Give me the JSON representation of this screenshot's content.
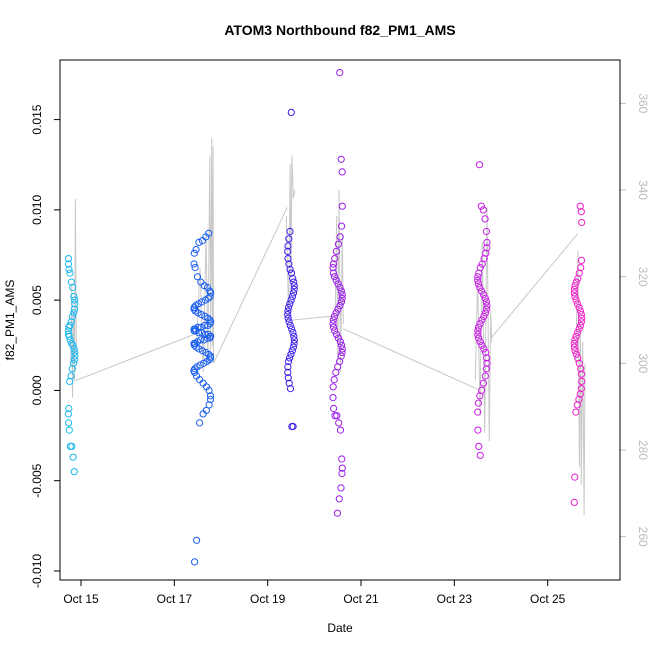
{
  "chart_data": {
    "type": "scatter",
    "title": "ATOM3 Northbound f82_PM1_AMS",
    "xlabel": "Date",
    "ylabel": "f82_PM1_AMS",
    "y2label": "",
    "xlim": [
      14.55,
      26.55
    ],
    "ylim": [
      -0.0105,
      0.0183
    ],
    "y2lim": [
      250,
      370
    ],
    "x_ticks": [
      15,
      17,
      19,
      21,
      23,
      25
    ],
    "x_tick_labels": [
      "Oct 15",
      "Oct 17",
      "Oct 19",
      "Oct 21",
      "Oct 23",
      "Oct 25"
    ],
    "y_ticks": [
      -0.01,
      -0.005,
      0.0,
      0.005,
      0.01,
      0.015
    ],
    "y_tick_labels": [
      "-0.010",
      "-0.005",
      "0.000",
      "0.005",
      "0.010",
      "0.015"
    ],
    "y2_ticks": [
      260,
      280,
      300,
      320,
      340,
      360
    ],
    "y2_tick_labels": [
      "260",
      "280",
      "300",
      "320",
      "340",
      "360"
    ],
    "grid": false,
    "colors": {
      "axis": "#000000",
      "right_axis": "#bbbbbb",
      "altitude_line": "#c8c8c8"
    },
    "series": [
      {
        "name": "f82_PM1_AMS",
        "marker": "open-circle",
        "clusters": [
          {
            "x_center": 14.8,
            "x_spread": 0.07,
            "color": "#1ab8f0",
            "y": [
              0.0073,
              0.007,
              0.0067,
              0.0065,
              0.006,
              0.0057,
              0.0052,
              0.005,
              0.0048,
              0.0045,
              0.0043,
              0.0041,
              0.0038,
              0.0036,
              0.0035,
              0.0033,
              0.0031,
              0.003,
              0.0028,
              0.0026,
              0.0025,
              0.0023,
              0.0021,
              0.0019,
              0.0017,
              0.0015,
              0.0012,
              0.0008,
              0.0005,
              -0.001,
              -0.0013,
              -0.0018,
              -0.0022,
              -0.0031,
              -0.0031,
              -0.0037,
              -0.0045
            ]
          },
          {
            "x_center": 17.6,
            "x_spread": 0.18,
            "color": "#1a5ef0",
            "y": [
              0.0087,
              0.0085,
              0.0083,
              0.0082,
              0.0078,
              0.0076,
              0.007,
              0.0068,
              0.0063,
              0.006,
              0.0058,
              0.0057,
              0.0055,
              0.0054,
              0.0052,
              0.0051,
              0.005,
              0.0049,
              0.0048,
              0.0047,
              0.0046,
              0.0045,
              0.0044,
              0.0043,
              0.0042,
              0.0041,
              0.004,
              0.0039,
              0.0038,
              0.0037,
              0.0036,
              0.0036,
              0.0035,
              0.0035,
              0.0034,
              0.0034,
              0.0033,
              0.0033,
              0.0032,
              0.0032,
              0.0031,
              0.0031,
              0.003,
              0.003,
              0.0029,
              0.0029,
              0.0028,
              0.0028,
              0.0027,
              0.0026,
              0.0026,
              0.0025,
              0.0024,
              0.0023,
              0.0022,
              0.0021,
              0.002,
              0.0019,
              0.0018,
              0.0017,
              0.0016,
              0.0015,
              0.0014,
              0.0013,
              0.0012,
              0.0011,
              0.001,
              0.0008,
              0.0006,
              0.0004,
              0.0002,
              0.0,
              -0.0003,
              -0.0005,
              -0.0008,
              -0.0011,
              -0.0013,
              -0.0018,
              -0.0083,
              -0.0095
            ]
          },
          {
            "x_center": 19.5,
            "x_spread": 0.07,
            "color": "#3a1ee8",
            "y": [
              0.0154,
              0.0088,
              0.0084,
              0.008,
              0.0077,
              0.0073,
              0.007,
              0.0067,
              0.0065,
              0.0062,
              0.006,
              0.0058,
              0.0056,
              0.0054,
              0.0052,
              0.005,
              0.0048,
              0.0046,
              0.0044,
              0.0042,
              0.004,
              0.0038,
              0.0036,
              0.0034,
              0.0032,
              0.003,
              0.0028,
              0.0026,
              0.0024,
              0.0022,
              0.002,
              0.0018,
              0.0016,
              0.0013,
              0.001,
              0.0007,
              0.0004,
              0.0001,
              -0.002,
              -0.002
            ]
          },
          {
            "x_center": 20.5,
            "x_spread": 0.1,
            "color": "#9a1ee8",
            "y": [
              0.0176,
              0.0128,
              0.0121,
              0.0102,
              0.0091,
              0.0085,
              0.0081,
              0.0077,
              0.0073,
              0.007,
              0.0068,
              0.0065,
              0.0063,
              0.0061,
              0.0059,
              0.0057,
              0.0055,
              0.0053,
              0.0051,
              0.0049,
              0.0047,
              0.0045,
              0.0043,
              0.0041,
              0.0039,
              0.0037,
              0.0035,
              0.0033,
              0.0031,
              0.0029,
              0.0027,
              0.0025,
              0.0023,
              0.0021,
              0.0019,
              0.0016,
              0.0013,
              0.001,
              0.0006,
              0.0002,
              -0.0004,
              -0.001,
              -0.0014,
              -0.0014,
              -0.0018,
              -0.0022,
              -0.0038,
              -0.0043,
              -0.0046,
              -0.0054,
              -0.006,
              -0.0068
            ]
          },
          {
            "x_center": 23.6,
            "x_spread": 0.1,
            "color": "#c81ee8",
            "y": [
              0.0125,
              0.0102,
              0.01,
              0.0095,
              0.0088,
              0.0082,
              0.0079,
              0.0076,
              0.0073,
              0.007,
              0.0068,
              0.0065,
              0.0063,
              0.0061,
              0.0059,
              0.0057,
              0.0055,
              0.0053,
              0.0051,
              0.0049,
              0.0047,
              0.0045,
              0.0043,
              0.0041,
              0.0039,
              0.0037,
              0.0035,
              0.0033,
              0.0031,
              0.0029,
              0.0027,
              0.0025,
              0.0023,
              0.0021,
              0.0018,
              0.0015,
              0.0012,
              0.0008,
              0.0004,
              0.0,
              -0.0003,
              -0.0007,
              -0.0012,
              -0.0022,
              -0.0031,
              -0.0036
            ]
          },
          {
            "x_center": 25.65,
            "x_spread": 0.08,
            "color": "#f01ec8",
            "y": [
              0.0102,
              0.0099,
              0.0093,
              0.0072,
              0.0068,
              0.0065,
              0.0062,
              0.006,
              0.0058,
              0.0056,
              0.0054,
              0.0052,
              0.005,
              0.0048,
              0.0046,
              0.0044,
              0.0042,
              0.004,
              0.0038,
              0.0036,
              0.0034,
              0.0032,
              0.003,
              0.0028,
              0.0026,
              0.0024,
              0.0022,
              0.002,
              0.0018,
              0.0015,
              0.0012,
              0.0009,
              0.0005,
              0.0001,
              -0.0002,
              -0.0005,
              -0.0008,
              -0.0012,
              -0.0048,
              -0.0062
            ]
          }
        ]
      },
      {
        "name": "altitude (right axis)",
        "line": true,
        "points": [
          {
            "x": 14.78,
            "y": 300
          },
          {
            "x": 14.8,
            "y": 318
          },
          {
            "x": 14.82,
            "y": 292
          },
          {
            "x": 14.84,
            "y": 312
          },
          {
            "x": 14.86,
            "y": 296
          },
          {
            "x": 14.88,
            "y": 338
          },
          {
            "x": 14.9,
            "y": 302
          },
          {
            "x": 17.48,
            "y": 305
          },
          {
            "x": 17.55,
            "y": 322
          },
          {
            "x": 17.62,
            "y": 298
          },
          {
            "x": 17.68,
            "y": 330
          },
          {
            "x": 17.72,
            "y": 300
          },
          {
            "x": 17.76,
            "y": 348
          },
          {
            "x": 17.78,
            "y": 303
          },
          {
            "x": 17.8,
            "y": 352
          },
          {
            "x": 17.82,
            "y": 304
          },
          {
            "x": 17.83,
            "y": 350
          },
          {
            "x": 17.84,
            "y": 300
          },
          {
            "x": 19.4,
            "y": 334
          },
          {
            "x": 19.45,
            "y": 310
          },
          {
            "x": 19.48,
            "y": 346
          },
          {
            "x": 19.5,
            "y": 320
          },
          {
            "x": 19.52,
            "y": 348
          },
          {
            "x": 19.55,
            "y": 338
          },
          {
            "x": 19.58,
            "y": 340
          },
          {
            "x": 20.45,
            "y": 312
          },
          {
            "x": 20.48,
            "y": 334
          },
          {
            "x": 20.5,
            "y": 300
          },
          {
            "x": 20.53,
            "y": 340
          },
          {
            "x": 20.56,
            "y": 298
          },
          {
            "x": 20.6,
            "y": 330
          },
          {
            "x": 20.62,
            "y": 309
          },
          {
            "x": 23.45,
            "y": 296
          },
          {
            "x": 23.5,
            "y": 320
          },
          {
            "x": 23.55,
            "y": 288
          },
          {
            "x": 23.6,
            "y": 328
          },
          {
            "x": 23.65,
            "y": 284
          },
          {
            "x": 23.7,
            "y": 336
          },
          {
            "x": 23.75,
            "y": 282
          },
          {
            "x": 23.78,
            "y": 312
          },
          {
            "x": 23.8,
            "y": 305
          },
          {
            "x": 25.6,
            "y": 300
          },
          {
            "x": 25.65,
            "y": 326
          },
          {
            "x": 25.68,
            "y": 276
          },
          {
            "x": 25.7,
            "y": 310
          },
          {
            "x": 25.72,
            "y": 272
          },
          {
            "x": 25.75,
            "y": 305
          },
          {
            "x": 25.78,
            "y": 265
          },
          {
            "x": 25.8,
            "y": 300
          }
        ],
        "connectors": [
          {
            "x": [
              14.88,
              17.5
            ],
            "y": [
              296,
              307
            ]
          },
          {
            "x": [
              17.84,
              19.42
            ],
            "y": [
              300,
              336
            ]
          },
          {
            "x": [
              19.55,
              20.5
            ],
            "y": [
              310,
              311
            ]
          },
          {
            "x": [
              20.62,
              23.5
            ],
            "y": [
              308,
              294
            ]
          },
          {
            "x": [
              23.8,
              25.65
            ],
            "y": [
              306,
              330
            ]
          }
        ]
      }
    ]
  }
}
